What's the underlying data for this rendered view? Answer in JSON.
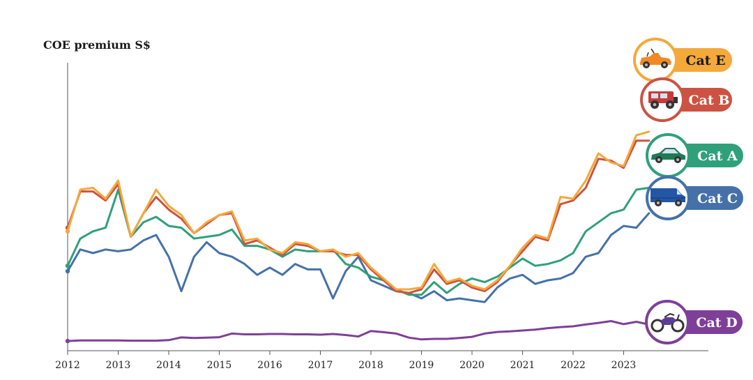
{
  "chart_data": {
    "type": "line",
    "ylabel": "COE premium S$",
    "xlabel": "",
    "x_ticks": [
      "2012",
      "2013",
      "2014",
      "2015",
      "2016",
      "2017",
      "2018",
      "2019",
      "2020",
      "2021",
      "2022",
      "2023"
    ],
    "x_tick_values": [
      2012,
      2013,
      2014,
      2015,
      2016,
      2017,
      2018,
      2019,
      2020,
      2021,
      2022,
      2023
    ],
    "xlim": [
      2012,
      2024.6
    ],
    "ylim": [
      0,
      155000
    ],
    "grid": false,
    "legend": "right end-of-line badges",
    "x": [
      2012.0,
      2012.25,
      2012.5,
      2012.75,
      2013.0,
      2013.25,
      2013.5,
      2013.75,
      2014.0,
      2014.25,
      2014.5,
      2014.75,
      2015.0,
      2015.25,
      2015.5,
      2015.75,
      2016.0,
      2016.25,
      2016.5,
      2016.75,
      2017.0,
      2017.25,
      2017.5,
      2017.75,
      2018.0,
      2018.25,
      2018.5,
      2018.75,
      2019.0,
      2019.25,
      2019.5,
      2019.75,
      2020.0,
      2020.25,
      2020.5,
      2020.75,
      2021.0,
      2021.25,
      2021.5,
      2021.75,
      2022.0,
      2022.25,
      2022.5,
      2022.75,
      2023.0,
      2023.25,
      2023.5
    ],
    "series": [
      {
        "name": "Cat E",
        "color": "#F4A93B",
        "values": [
          62000,
          85000,
          86000,
          80000,
          90000,
          59000,
          72000,
          85000,
          76000,
          71000,
          61000,
          67000,
          71000,
          73000,
          57000,
          58000,
          52000,
          50000,
          56000,
          55000,
          51000,
          52000,
          48000,
          50000,
          42000,
          36000,
          30000,
          30000,
          31000,
          44000,
          34000,
          36000,
          32000,
          30000,
          35000,
          43000,
          53000,
          60000,
          58000,
          81000,
          80000,
          90000,
          105000,
          100000,
          98000,
          115000,
          117000
        ]
      },
      {
        "name": "Cat B",
        "color": "#CC5343",
        "values": [
          64000,
          84000,
          84000,
          79000,
          88000,
          59000,
          72000,
          81000,
          74000,
          69000,
          61000,
          66000,
          71000,
          72000,
          55000,
          57000,
          53000,
          49000,
          55000,
          54000,
          51000,
          51000,
          49000,
          49000,
          41000,
          35000,
          29000,
          28000,
          30000,
          41000,
          33000,
          35000,
          31000,
          29000,
          34000,
          43000,
          51000,
          59000,
          57000,
          77000,
          79000,
          86000,
          102000,
          101000,
          97000,
          112000,
          112000
        ]
      },
      {
        "name": "Cat A",
        "color": "#2FA07A",
        "values": [
          43000,
          58000,
          62000,
          64000,
          85000,
          59000,
          67000,
          70000,
          65000,
          64000,
          58000,
          59000,
          60000,
          63000,
          54000,
          54000,
          52000,
          48000,
          52000,
          51000,
          51000,
          52000,
          44000,
          42000,
          37000,
          35000,
          30000,
          27000,
          27000,
          34000,
          28000,
          33000,
          36000,
          34000,
          37000,
          42000,
          47000,
          43000,
          44000,
          46000,
          50000,
          62000,
          67000,
          72000,
          74000,
          85000,
          86000
        ]
      },
      {
        "name": "Cat C",
        "color": "#4571A8",
        "values": [
          40000,
          52000,
          50000,
          52000,
          51000,
          52000,
          57000,
          60000,
          48000,
          29000,
          48000,
          56000,
          50000,
          48000,
          44000,
          38000,
          42000,
          38000,
          44000,
          41000,
          41000,
          25000,
          40000,
          48000,
          35000,
          32000,
          29000,
          28000,
          25000,
          29000,
          24000,
          25000,
          24000,
          23000,
          31000,
          36000,
          38000,
          33000,
          35000,
          36000,
          39000,
          48000,
          50000,
          60000,
          65000,
          64000,
          72000
        ]
      },
      {
        "name": "Cat D",
        "color": "#7E3F98",
        "values": [
          1500,
          1800,
          1800,
          1800,
          1800,
          1700,
          1700,
          1700,
          2000,
          3500,
          3200,
          3400,
          3600,
          5600,
          5200,
          5200,
          5400,
          5400,
          5200,
          5200,
          5000,
          5400,
          4800,
          4000,
          7000,
          6400,
          5600,
          3400,
          2400,
          2700,
          2700,
          3200,
          3800,
          5600,
          6500,
          6800,
          7300,
          7800,
          8600,
          9200,
          9600,
          10600,
          11500,
          12500,
          10800,
          12100,
          10600
        ]
      }
    ],
    "badges": [
      {
        "series": "Cat E",
        "label": "Cat E",
        "icon": "convertible-car-icon"
      },
      {
        "series": "Cat B",
        "label": "Cat B",
        "icon": "jeep-suv-icon"
      },
      {
        "series": "Cat A",
        "label": "Cat A",
        "icon": "sedan-car-icon"
      },
      {
        "series": "Cat C",
        "label": "Cat C",
        "icon": "delivery-van-icon"
      },
      {
        "series": "Cat D",
        "label": "Cat D",
        "icon": "motorcycle-icon"
      }
    ]
  }
}
